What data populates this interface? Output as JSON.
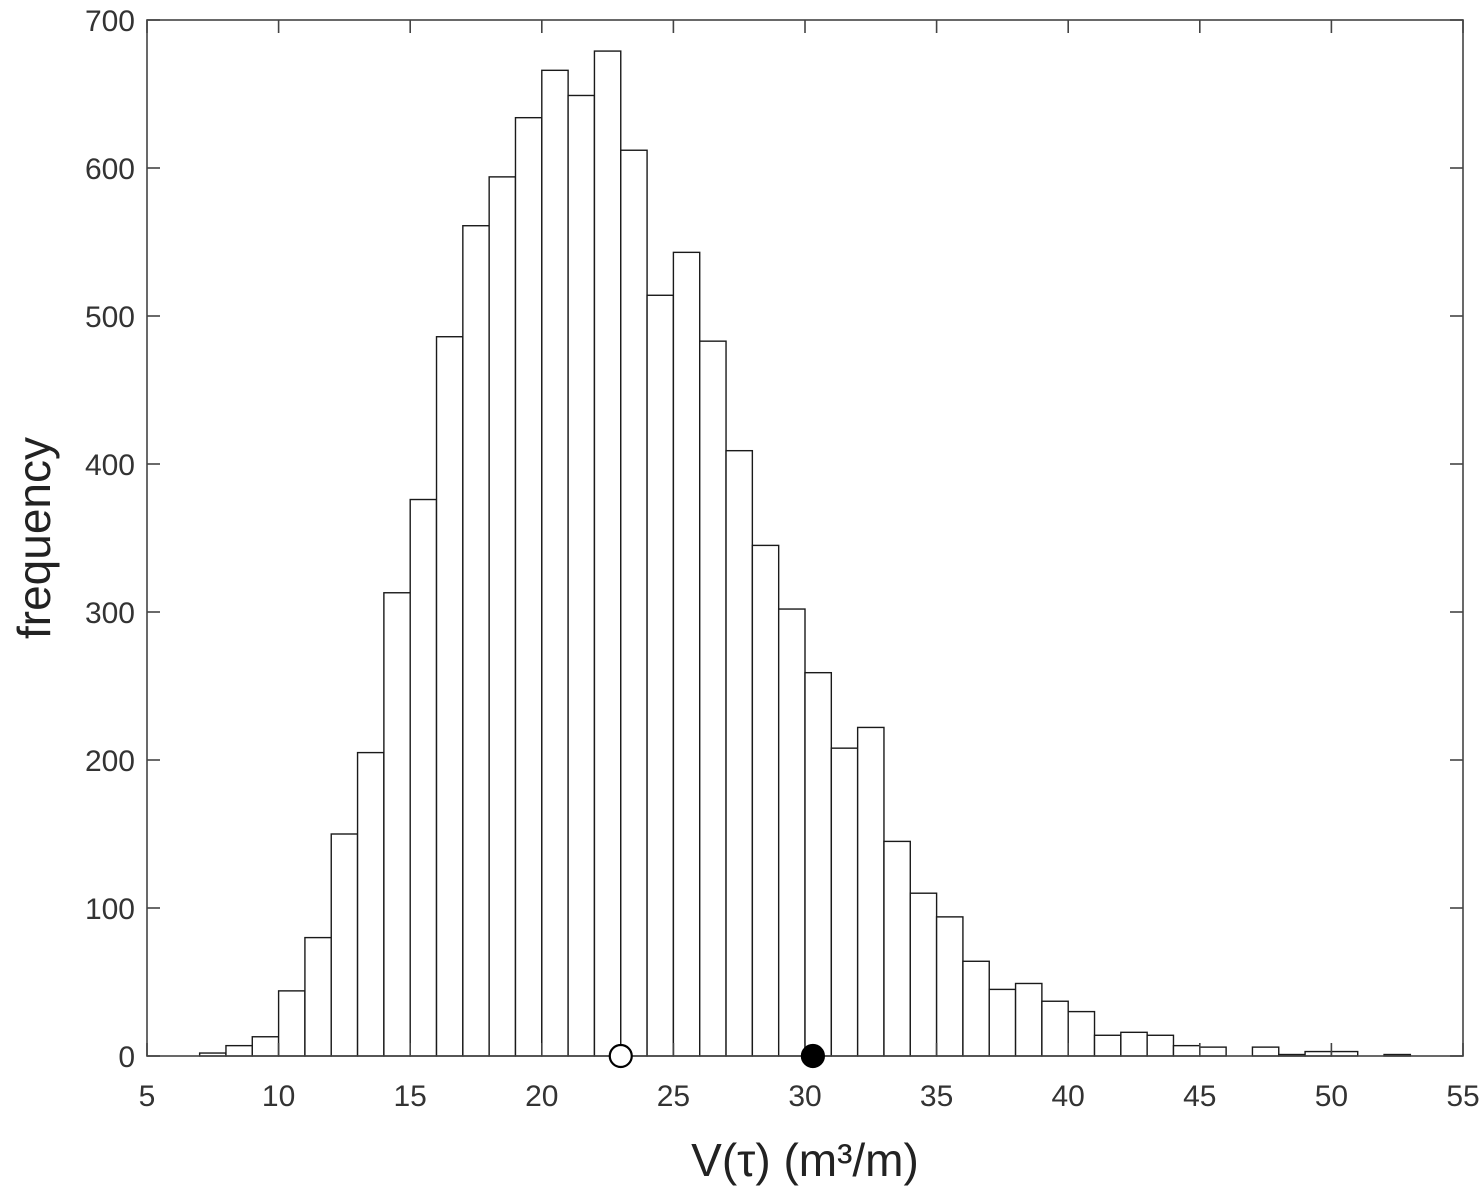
{
  "chart_data": {
    "type": "bar",
    "subtype": "histogram",
    "title": "",
    "xlabel": "V(τ) (m³/m)",
    "ylabel": "frequency",
    "xlim": [
      5,
      55
    ],
    "ylim": [
      0,
      700
    ],
    "xticks": [
      "5",
      "10",
      "15",
      "20",
      "25",
      "30",
      "35",
      "40",
      "45",
      "50",
      "55"
    ],
    "yticks": [
      "0",
      "100",
      "200",
      "300",
      "400",
      "500",
      "600",
      "700"
    ],
    "grid": false,
    "bin_width": 1,
    "bin_left_edges": [
      7,
      8,
      9,
      10,
      11,
      12,
      13,
      14,
      15,
      16,
      17,
      18,
      19,
      20,
      21,
      22,
      23,
      24,
      25,
      26,
      27,
      28,
      29,
      30,
      31,
      32,
      33,
      34,
      35,
      36,
      37,
      38,
      39,
      40,
      41,
      42,
      43,
      44,
      45,
      46,
      47,
      48,
      49,
      50,
      51,
      52
    ],
    "values": [
      2,
      7,
      13,
      44,
      80,
      150,
      205,
      313,
      376,
      486,
      561,
      594,
      634,
      666,
      649,
      679,
      612,
      514,
      543,
      483,
      409,
      345,
      302,
      259,
      208,
      222,
      145,
      110,
      94,
      64,
      45,
      49,
      37,
      30,
      14,
      16,
      14,
      7,
      6,
      0,
      6,
      1,
      3,
      3,
      0,
      1
    ],
    "markers": [
      {
        "name": "open-circle",
        "x": 23,
        "y": 0,
        "fill": "#ffffff",
        "stroke": "#000000"
      },
      {
        "name": "filled-circle",
        "x": 30.3,
        "y": 0,
        "fill": "#000000",
        "stroke": "#000000"
      }
    ],
    "colors": {
      "bar_fill": "#ffffff",
      "bar_edge": "#1a1a1a",
      "axis": "#444444",
      "text": "#333333"
    }
  }
}
